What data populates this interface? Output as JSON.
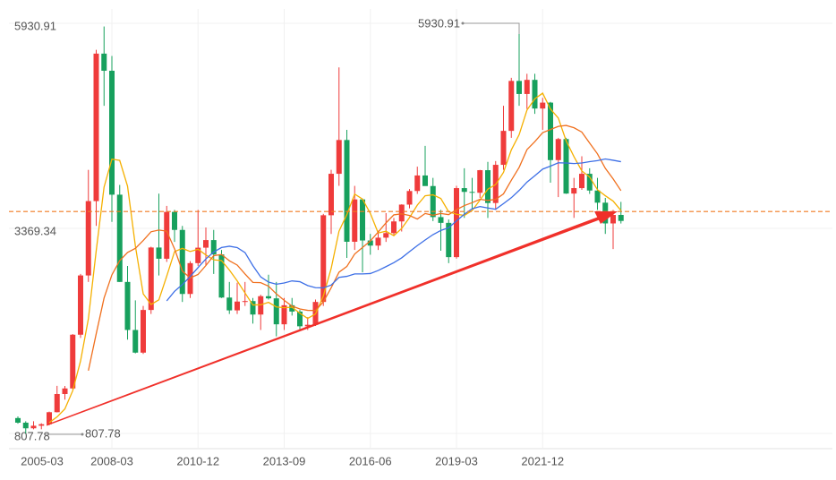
{
  "chart_data": {
    "type": "candlestick",
    "categories": [
      "2005-03",
      null,
      null,
      null,
      null,
      null,
      null,
      null,
      null,
      null,
      null,
      null,
      "2008-03",
      null,
      null,
      null,
      null,
      null,
      null,
      null,
      null,
      null,
      null,
      "2010-12",
      null,
      null,
      null,
      null,
      null,
      null,
      null,
      null,
      null,
      null,
      "2013-09",
      null,
      null,
      null,
      null,
      null,
      null,
      null,
      null,
      null,
      null,
      "2016-06",
      null,
      null,
      null,
      null,
      null,
      null,
      null,
      null,
      null,
      null,
      "2019-03",
      null,
      null,
      null,
      null,
      null,
      null,
      null,
      null,
      null,
      null,
      "2021-12",
      null,
      null,
      null,
      null,
      null,
      null,
      null,
      null,
      null,
      null
    ],
    "open": [
      1000,
      942,
      872,
      904,
      923,
      1073,
      1300,
      1370,
      2041,
      2781,
      3710,
      5552,
      5338,
      3790,
      2700,
      2100,
      1817,
      2350,
      3130,
      2990,
      3575,
      3350,
      2550,
      2935,
      3128,
      3223,
      3044,
      2505,
      2345,
      2455,
      2461,
      2293,
      2522,
      2495,
      2171,
      2409,
      2330,
      2146,
      2165,
      2450,
      3533,
      4051,
      4473,
      3202,
      3731,
      3218,
      3154,
      3253,
      3310,
      3456,
      3666,
      3836,
      4030,
      3898,
      3510,
      3438,
      3010,
      3872,
      3825,
      3814,
      4096,
      3686,
      4163,
      4587,
      5211,
      5048,
      5224,
      4866,
      4940,
      4222,
      4485,
      3804,
      3872,
      4051,
      3842,
      3690,
      3431,
      3537
    ],
    "high": [
      1020,
      960,
      960,
      935,
      1080,
      1402,
      1400,
      2049,
      2800,
      4100,
      5600,
      5891,
      5522,
      3912,
      2900,
      2470,
      2400,
      3140,
      3803,
      3650,
      3600,
      3400,
      2960,
      3600,
      3380,
      3350,
      3100,
      2700,
      2690,
      2700,
      2500,
      2540,
      2790,
      2700,
      2500,
      2500,
      2350,
      2260,
      2480,
      3550,
      4100,
      5380,
      4600,
      3900,
      3740,
      3300,
      3340,
      3560,
      3500,
      3670,
      3860,
      4140,
      4400,
      4000,
      3600,
      3480,
      3900,
      4120,
      4000,
      4100,
      4200,
      4210,
      4900,
      5250,
      5930.91,
      5300,
      5300,
      5000,
      4950,
      4500,
      4500,
      4000,
      4270,
      4120,
      4000,
      3750,
      3600,
      3700
    ],
    "low": [
      930,
      807.78,
      860,
      860,
      910,
      1070,
      1230,
      1360,
      2000,
      2700,
      3400,
      4900,
      3450,
      2700,
      1980,
      1808,
      1800,
      2300,
      2780,
      2950,
      3200,
      2450,
      2500,
      2900,
      2900,
      2800,
      2500,
      2300,
      2300,
      2400,
      2180,
      2100,
      2480,
      2020,
      2100,
      2280,
      2100,
      2100,
      2150,
      2400,
      3300,
      3900,
      3000,
      3100,
      2820,
      3040,
      3100,
      3200,
      3280,
      3330,
      3620,
      3800,
      3900,
      3460,
      3090,
      2935,
      2990,
      3500,
      3620,
      3750,
      3500,
      3600,
      4100,
      4500,
      4900,
      4860,
      4800,
      4600,
      3940,
      3760,
      3800,
      3500,
      3850,
      3800,
      3600,
      3300,
      3110,
      3430
    ],
    "close": [
      942,
      872,
      904,
      923,
      1073,
      1300,
      1370,
      2041,
      2781,
      3710,
      5552,
      5338,
      3790,
      2700,
      2100,
      1817,
      2350,
      3130,
      2990,
      3575,
      3350,
      2550,
      2935,
      3128,
      3223,
      3044,
      2505,
      2345,
      2455,
      2461,
      2293,
      2522,
      2495,
      2171,
      2409,
      2330,
      2146,
      2165,
      2450,
      3533,
      4051,
      4473,
      3202,
      3731,
      3218,
      3154,
      3253,
      3310,
      3456,
      3666,
      3836,
      4030,
      3898,
      3510,
      3438,
      3010,
      3872,
      3825,
      3814,
      4096,
      3686,
      4163,
      4587,
      5211,
      5048,
      5224,
      4866,
      4940,
      4222,
      4485,
      3804,
      3872,
      4051,
      3842,
      3690,
      3431,
      3537,
      3462
    ],
    "up_color": "#ef3b3b",
    "down_color": "#17a05d",
    "moving_averages": [
      {
        "color": "#f5b000",
        "values": [
          null,
          null,
          null,
          null,
          943,
          1014,
          1114,
          1341,
          1713,
          2240,
          3091,
          3884,
          4234,
          4218,
          3896,
          3149,
          2551,
          2419,
          2477,
          2772,
          3079,
          3119,
          3080,
          3108,
          3037,
          2976,
          2967,
          2849,
          2714,
          2562,
          2412,
          2415,
          2445,
          2388,
          2378,
          2385,
          2310,
          2244,
          2300,
          2525,
          2869,
          3334,
          3542,
          3798,
          3735,
          3556,
          3312,
          3333,
          3278,
          3368,
          3504,
          3660,
          3777,
          3788,
          3742,
          3577,
          3546,
          3531,
          3592,
          3723,
          3859,
          3917,
          4069,
          4349,
          4539,
          4847,
          4987,
          5058,
          4860,
          4747,
          4463,
          4265,
          4087,
          4011,
          3852,
          3777,
          3710,
          3592
        ]
      },
      {
        "color": "#f0701e",
        "values": [
          null,
          null,
          null,
          null,
          null,
          null,
          null,
          null,
          null,
          1592,
          2053,
          2499,
          2788,
          2966,
          3068,
          3120,
          3218,
          3327,
          3348,
          3334,
          3114,
          2835,
          2750,
          2793,
          2905,
          3028,
          3043,
          2965,
          2911,
          2800,
          2694,
          2691,
          2647,
          2551,
          2470,
          2399,
          2363,
          2345,
          2344,
          2451,
          2627,
          2822,
          2893,
          3049,
          3130,
          3212,
          3323,
          3438,
          3538,
          3551,
          3530,
          3486,
          3555,
          3533,
          3555,
          3541,
          3603,
          3654,
          3690,
          3733,
          3718,
          3731,
          3800,
          3970,
          4131,
          4353,
          4452,
          4564,
          4604,
          4643,
          4655,
          4626,
          4572,
          4435,
          4300,
          4120,
          3987,
          3840
        ]
      },
      {
        "color": "#3d6fe6",
        "values": [
          null,
          null,
          null,
          null,
          null,
          null,
          null,
          null,
          null,
          null,
          null,
          null,
          null,
          null,
          null,
          null,
          null,
          null,
          null,
          2463,
          2583,
          2667,
          2769,
          2879,
          2987,
          3074,
          3130,
          3146,
          3129,
          3067,
          2904,
          2763,
          2698,
          2672,
          2687,
          2713,
          2703,
          2655,
          2628,
          2626,
          2661,
          2757,
          2770,
          2800,
          2800,
          2805,
          2843,
          2891,
          2941,
          3001,
          3079,
          3154,
          3224,
          3291,
          3343,
          3377,
          3463,
          3546,
          3614,
          3642,
          3624,
          3608,
          3678,
          3752,
          3843,
          3947,
          4027,
          4109,
          4147,
          4188,
          4186,
          4179,
          4186,
          4203,
          4215,
          4236,
          4220,
          4202
        ]
      }
    ],
    "price_line": {
      "value": 3580,
      "color": "#f07a20"
    },
    "ylim": [
      807.78,
      5930.91
    ],
    "yticks": [
      5930.91,
      3369.34,
      807.78
    ],
    "grid": true
  }
}
